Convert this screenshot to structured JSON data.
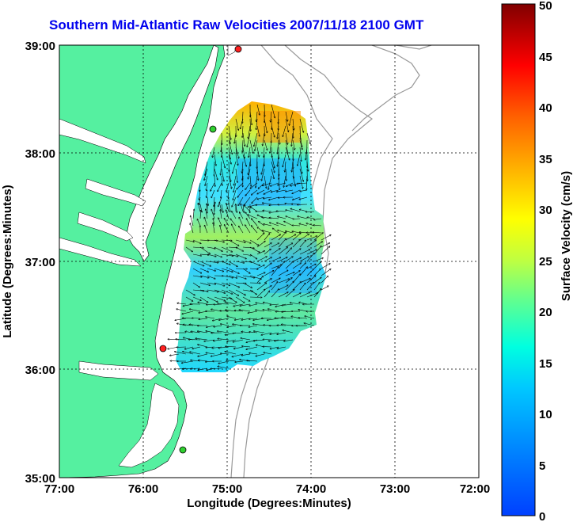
{
  "title": "Southern Mid-Atlantic Raw Velocities 2007/11/18 2100 GMT",
  "xlabel": "Longitude (Degrees:Minutes)",
  "ylabel": "Latitude (Degrees:Minutes)",
  "colorbar_label": "Surface Velocity (cm/s)",
  "x_ticks": [
    "77:00",
    "76:00",
    "75:00",
    "74:00",
    "73:00",
    "72:00"
  ],
  "y_ticks": [
    "39:00",
    "38:00",
    "37:00",
    "36:00",
    "35:00"
  ],
  "colorbar_ticks": [
    "50",
    "45",
    "40",
    "35",
    "30",
    "25",
    "20",
    "15",
    "10",
    "5",
    "0"
  ],
  "colors": {
    "land": "#55f0a0",
    "ocean": "#ffffff",
    "title": "#0000ee",
    "bathymetry": "#999999",
    "grid": "#000000"
  },
  "chart_data": {
    "type": "heatmap",
    "title": "Southern Mid-Atlantic Raw Velocities 2007/11/18 2100 GMT",
    "xlabel": "Longitude (Degrees:Minutes)",
    "ylabel": "Latitude (Degrees:Minutes)",
    "xlim": [
      -77.0,
      -72.0
    ],
    "ylim": [
      35.0,
      39.0
    ],
    "colorbar": {
      "label": "Surface Velocity (cm/s)",
      "range": [
        0,
        50
      ],
      "colormap": "jet"
    },
    "stations": [
      {
        "lon": -74.83,
        "lat": 38.95,
        "color": "red"
      },
      {
        "lon": -75.09,
        "lat": 38.21,
        "color": "green"
      },
      {
        "lon": -75.72,
        "lat": 36.18,
        "color": "red"
      },
      {
        "lon": -75.47,
        "lat": 35.25,
        "color": "green"
      }
    ]
  }
}
